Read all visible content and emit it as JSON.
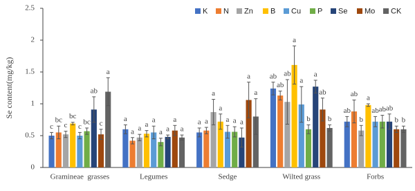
{
  "chart_data": {
    "type": "bar",
    "ylabel": "Se content(mg/kg)",
    "categories": [
      "Gramineae  grasses",
      "Legumes",
      "Sedge",
      "Wilted grass",
      "Forbs"
    ],
    "ylim": [
      0,
      2.5
    ],
    "yticks": [
      0,
      0.5,
      1,
      1.5,
      2,
      2.5
    ],
    "legend": "top-right",
    "series": [
      {
        "name": "K",
        "color": "#4472c4",
        "values": [
          0.5,
          0.6,
          0.55,
          1.24,
          0.72
        ],
        "errors": [
          0.05,
          0.07,
          0.07,
          0.1,
          0.08
        ],
        "letters": [
          "c",
          "a",
          "a",
          "ab",
          "ab"
        ]
      },
      {
        "name": "N",
        "color": "#ed7d31",
        "values": [
          0.55,
          0.42,
          0.58,
          1.13,
          0.88
        ],
        "errors": [
          0.1,
          0.05,
          0.05,
          0.07,
          0.18
        ],
        "letters": [
          "bc",
          "a",
          "a",
          "ab",
          "ab"
        ]
      },
      {
        "name": "Zn",
        "color": "#a5a5a5",
        "values": [
          0.52,
          0.47,
          0.87,
          1.03,
          0.58
        ],
        "errors": [
          0.05,
          0.05,
          0.2,
          0.35,
          0.08
        ],
        "letters": [
          "c",
          "a",
          "a",
          "ab",
          "b"
        ]
      },
      {
        "name": "B",
        "color": "#ffc000",
        "values": [
          0.69,
          0.53,
          0.72,
          1.61,
          0.98
        ],
        "errors": [
          0.02,
          0.05,
          0.12,
          0.3,
          0.02
        ],
        "letters": [
          "bc",
          "a",
          "a",
          "a",
          "a"
        ]
      },
      {
        "name": "Cu",
        "color": "#5b9bd5",
        "values": [
          0.5,
          0.55,
          0.56,
          0.99,
          0.72
        ],
        "errors": [
          0.05,
          0.1,
          0.1,
          0.28,
          0.08
        ],
        "letters": [
          "c",
          "a",
          "a",
          "a",
          "ab"
        ]
      },
      {
        "name": "P",
        "color": "#70ad47",
        "values": [
          0.57,
          0.4,
          0.56,
          0.6,
          0.72
        ],
        "errors": [
          0.05,
          0.06,
          0.08,
          0.07,
          0.1
        ],
        "letters": [
          "bc",
          "a",
          "a",
          "b",
          "ab"
        ]
      },
      {
        "name": "Se",
        "color": "#264478",
        "values": [
          0.91,
          0.48,
          0.47,
          1.27,
          0.72
        ],
        "errors": [
          0.2,
          0.03,
          0.15,
          0.1,
          0.12
        ],
        "letters": [
          "ab",
          "a",
          "a",
          "a",
          "ab"
        ]
      },
      {
        "name": "Mo",
        "color": "#9e480e",
        "values": [
          0.52,
          0.58,
          1.06,
          0.91,
          0.6
        ],
        "errors": [
          0.08,
          0.08,
          0.28,
          0.18,
          0.05
        ],
        "letters": [
          "c",
          "a",
          "a",
          "ab",
          "b"
        ]
      },
      {
        "name": "CK",
        "color": "#636363",
        "values": [
          1.19,
          0.47,
          0.8,
          0.62,
          0.6
        ],
        "errors": [
          0.22,
          0.04,
          0.28,
          0.05,
          0.05
        ],
        "letters": [
          "a",
          "a",
          "a",
          "b",
          "b"
        ]
      }
    ]
  }
}
